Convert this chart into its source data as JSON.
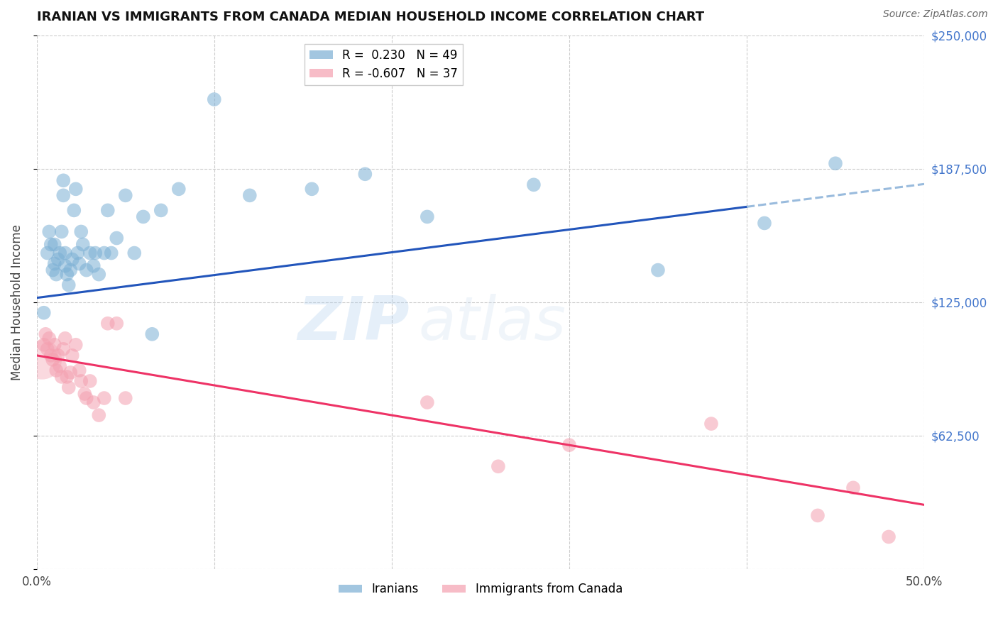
{
  "title": "IRANIAN VS IMMIGRANTS FROM CANADA MEDIAN HOUSEHOLD INCOME CORRELATION CHART",
  "source": "Source: ZipAtlas.com",
  "ylabel": "Median Household Income",
  "xlim": [
    0.0,
    0.5
  ],
  "ylim": [
    0,
    250000
  ],
  "yticks": [
    0,
    62500,
    125000,
    187500,
    250000
  ],
  "ytick_labels": [
    "",
    "$62,500",
    "$125,000",
    "$187,500",
    "$250,000"
  ],
  "xticks": [
    0.0,
    0.1,
    0.2,
    0.3,
    0.4,
    0.5
  ],
  "xtick_labels": [
    "0.0%",
    "",
    "",
    "",
    "",
    "50.0%"
  ],
  "background_color": "#ffffff",
  "grid_color": "#cccccc",
  "watermark_zip": "ZIP",
  "watermark_atlas": "atlas",
  "iranians_color": "#7bafd4",
  "canadians_color": "#f4a0b0",
  "iranians_R": 0.23,
  "iranians_N": 49,
  "canadians_R": -0.607,
  "canadians_N": 37,
  "iranians_x": [
    0.004,
    0.006,
    0.007,
    0.008,
    0.009,
    0.01,
    0.01,
    0.011,
    0.012,
    0.013,
    0.014,
    0.015,
    0.015,
    0.016,
    0.016,
    0.017,
    0.018,
    0.019,
    0.02,
    0.021,
    0.022,
    0.023,
    0.024,
    0.025,
    0.026,
    0.028,
    0.03,
    0.032,
    0.033,
    0.035,
    0.038,
    0.04,
    0.042,
    0.045,
    0.05,
    0.055,
    0.06,
    0.065,
    0.07,
    0.08,
    0.1,
    0.12,
    0.155,
    0.185,
    0.22,
    0.28,
    0.35,
    0.41,
    0.45
  ],
  "iranians_y": [
    120000,
    148000,
    158000,
    152000,
    140000,
    143000,
    152000,
    138000,
    145000,
    148000,
    158000,
    182000,
    175000,
    142000,
    148000,
    138000,
    133000,
    140000,
    145000,
    168000,
    178000,
    148000,
    143000,
    158000,
    152000,
    140000,
    148000,
    142000,
    148000,
    138000,
    148000,
    168000,
    148000,
    155000,
    175000,
    148000,
    165000,
    110000,
    168000,
    178000,
    220000,
    175000,
    178000,
    185000,
    165000,
    180000,
    140000,
    162000,
    190000
  ],
  "canadians_x": [
    0.003,
    0.004,
    0.005,
    0.006,
    0.007,
    0.008,
    0.009,
    0.01,
    0.011,
    0.012,
    0.013,
    0.014,
    0.015,
    0.016,
    0.017,
    0.018,
    0.019,
    0.02,
    0.022,
    0.024,
    0.025,
    0.027,
    0.028,
    0.03,
    0.032,
    0.035,
    0.038,
    0.04,
    0.045,
    0.05,
    0.22,
    0.26,
    0.3,
    0.38,
    0.44,
    0.46,
    0.48
  ],
  "canadians_y": [
    98000,
    105000,
    110000,
    103000,
    108000,
    100000,
    98000,
    105000,
    93000,
    100000,
    95000,
    90000,
    103000,
    108000,
    90000,
    85000,
    92000,
    100000,
    105000,
    93000,
    88000,
    82000,
    80000,
    88000,
    78000,
    72000,
    80000,
    115000,
    115000,
    80000,
    78000,
    48000,
    58000,
    68000,
    25000,
    38000,
    15000
  ],
  "large_circle_idx": 0,
  "iran_line_color": "#2255bb",
  "canada_line_color": "#ee3366",
  "iran_dash_color": "#99bbdd",
  "iran_line_x_solid_end": 0.4,
  "iran_line_x_dash_start": 0.4
}
